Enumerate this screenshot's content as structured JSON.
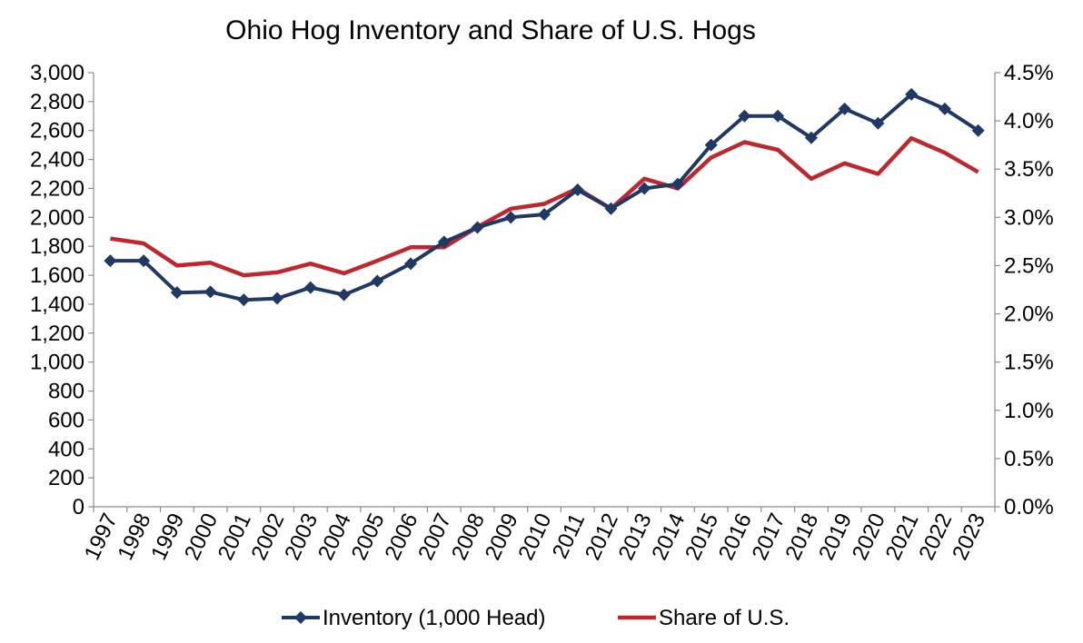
{
  "chart_data": {
    "type": "line",
    "title": "Ohio Hog Inventory and Share of U.S. Hogs",
    "x": [
      "1997",
      "1998",
      "1999",
      "2000",
      "2001",
      "2002",
      "2003",
      "2004",
      "2005",
      "2006",
      "2007",
      "2008",
      "2009",
      "2010",
      "2011",
      "2012",
      "2013",
      "2014",
      "2015",
      "2016",
      "2017",
      "2018",
      "2019",
      "2020",
      "2021",
      "2022",
      "2023"
    ],
    "series": [
      {
        "name": "Inventory (1,000 Head)",
        "axis": "left",
        "color": "#1f3864",
        "marker": "diamond",
        "values": [
          1700,
          1700,
          1480,
          1485,
          1430,
          1440,
          1515,
          1465,
          1560,
          1680,
          1830,
          1930,
          2000,
          2020,
          2190,
          2060,
          2200,
          2230,
          2500,
          2700,
          2700,
          2550,
          2750,
          2650,
          2850,
          2750,
          2600
        ]
      },
      {
        "name": "Share of U.S.",
        "axis": "right",
        "color": "#c0272d",
        "marker": "none",
        "values": [
          2.78,
          2.73,
          2.5,
          2.53,
          2.4,
          2.43,
          2.52,
          2.42,
          2.55,
          2.69,
          2.69,
          2.9,
          3.09,
          3.14,
          3.3,
          3.09,
          3.4,
          3.3,
          3.62,
          3.78,
          3.7,
          3.4,
          3.56,
          3.45,
          3.82,
          3.67,
          3.47
        ]
      }
    ],
    "y_left": {
      "ylim": [
        0,
        3000
      ],
      "ticks": [
        0,
        200,
        400,
        600,
        800,
        1000,
        1200,
        1400,
        1600,
        1800,
        2000,
        2200,
        2400,
        2600,
        2800,
        3000
      ],
      "tick_labels": [
        "0",
        "200",
        "400",
        "600",
        "800",
        "1,000",
        "1,200",
        "1,400",
        "1,600",
        "1,800",
        "2,000",
        "2,200",
        "2,400",
        "2,600",
        "2,800",
        "3,000"
      ]
    },
    "y_right": {
      "ylim": [
        0,
        4.5
      ],
      "ticks": [
        0,
        0.5,
        1,
        1.5,
        2,
        2.5,
        3,
        3.5,
        4,
        4.5
      ],
      "tick_labels": [
        "0.0%",
        "0.5%",
        "1.0%",
        "1.5%",
        "2.0%",
        "2.5%",
        "3.0%",
        "3.5%",
        "4.0%",
        "4.5%"
      ]
    },
    "grid": false,
    "legend": "bottom"
  }
}
